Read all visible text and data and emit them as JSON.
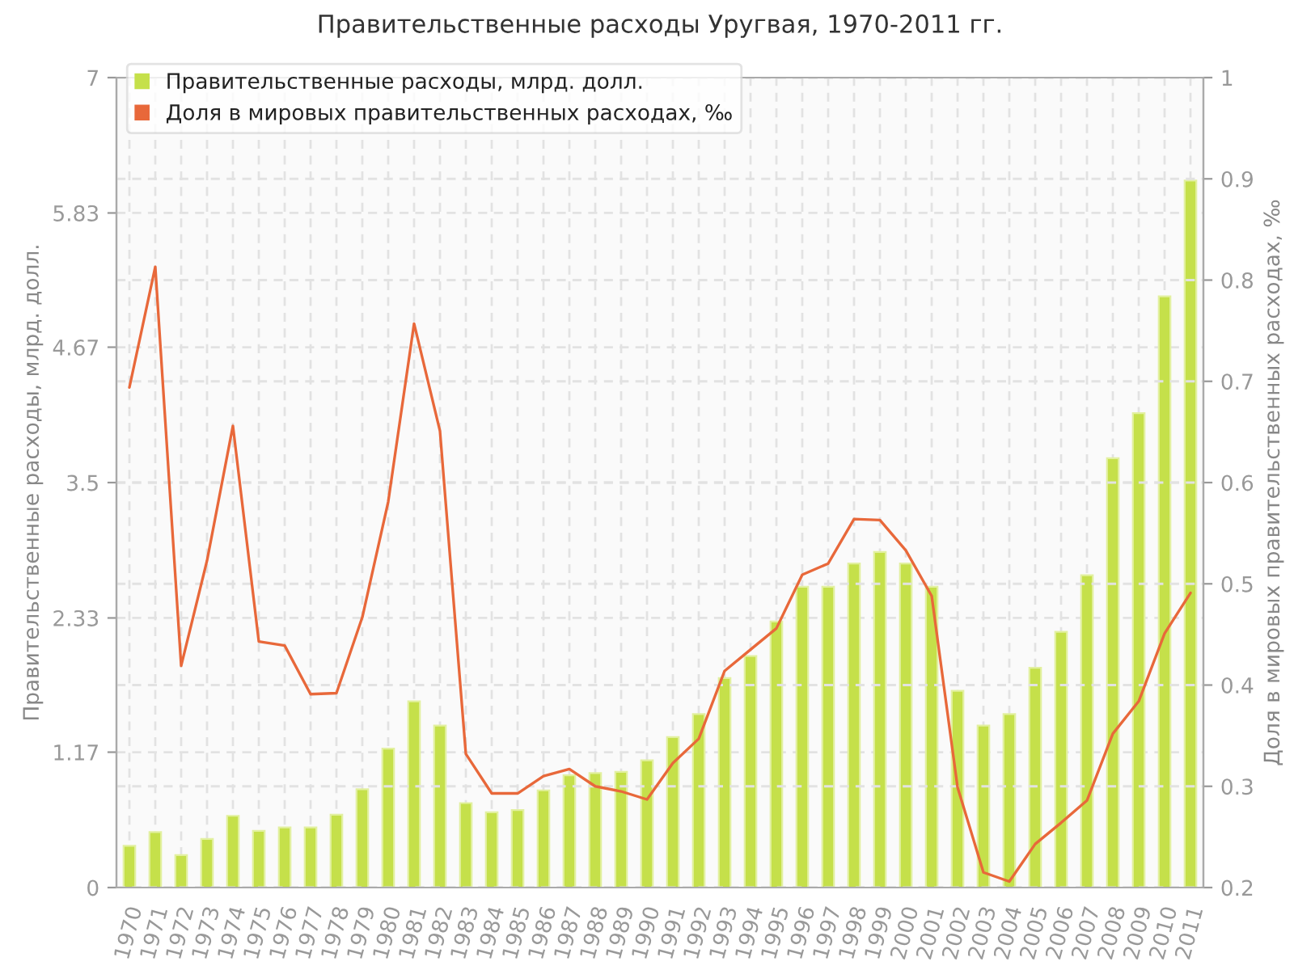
{
  "chart_data": {
    "type": "bar",
    "title": "Правительственные расходы Уругвая, 1970-2011 гг.",
    "ylabel": "Правительственные расходы, млрд. долл.",
    "y2label": "Доля в мировых правительственных расходах, ‰",
    "categories": [
      "1970",
      "1971",
      "1972",
      "1973",
      "1974",
      "1975",
      "1976",
      "1977",
      "1978",
      "1979",
      "1980",
      "1981",
      "1982",
      "1983",
      "1984",
      "1985",
      "1986",
      "1987",
      "1988",
      "1989",
      "1990",
      "1991",
      "1992",
      "1993",
      "1994",
      "1995",
      "1996",
      "1997",
      "1998",
      "1999",
      "2000",
      "2001",
      "2002",
      "2003",
      "2004",
      "2005",
      "2006",
      "2007",
      "2008",
      "2009",
      "2010",
      "2011"
    ],
    "series": [
      {
        "name": "Правительственные расходы, млрд. долл.",
        "color": "#c5e04a",
        "values": [
          0.36,
          0.48,
          0.28,
          0.42,
          0.62,
          0.49,
          0.52,
          0.52,
          0.63,
          0.85,
          1.2,
          1.61,
          1.4,
          0.73,
          0.65,
          0.67,
          0.84,
          0.97,
          0.99,
          1.0,
          1.1,
          1.3,
          1.5,
          1.81,
          2.0,
          2.3,
          2.6,
          2.6,
          2.8,
          2.9,
          2.8,
          2.6,
          1.7,
          1.4,
          1.5,
          1.9,
          2.21,
          2.7,
          3.71,
          4.1,
          5.11,
          6.11
        ]
      },
      {
        "name": "Доля в мировых правительственных расходах, ‰",
        "type": "line",
        "axis": "y2",
        "color": "#e8683a",
        "values": [
          0.694,
          0.813,
          0.419,
          0.523,
          0.656,
          0.443,
          0.439,
          0.391,
          0.392,
          0.467,
          0.581,
          0.757,
          0.651,
          0.332,
          0.293,
          0.293,
          0.31,
          0.317,
          0.3,
          0.295,
          0.287,
          0.323,
          0.347,
          0.414,
          0.435,
          0.456,
          0.509,
          0.52,
          0.564,
          0.563,
          0.533,
          0.488,
          0.299,
          0.215,
          0.206,
          0.243,
          0.264,
          0.286,
          0.352,
          0.384,
          0.451,
          0.491
        ]
      }
    ],
    "ylim": [
      0,
      7
    ],
    "yticks": [
      0,
      1.17,
      2.33,
      3.5,
      4.67,
      5.83,
      7
    ],
    "y2lim": [
      0.2,
      1
    ],
    "y2ticks": [
      0.2,
      0.3,
      0.4,
      0.5,
      0.6,
      0.7,
      0.8,
      0.9,
      1
    ],
    "grid": true,
    "legend": "top left",
    "line_style": "solid",
    "marker": "none"
  }
}
